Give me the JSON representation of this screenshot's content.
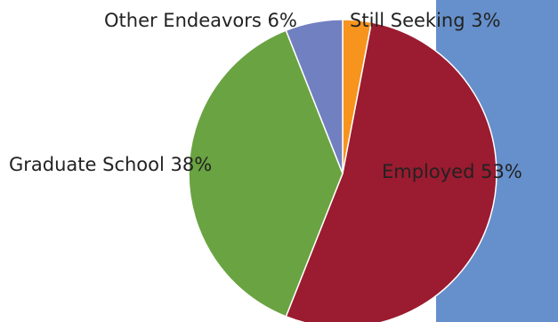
{
  "chart_data": {
    "type": "pie",
    "start_angle_deg": 0,
    "direction": "clockwise",
    "slices": [
      {
        "label": "Still Seeking",
        "percent_label": "3%",
        "value": 3,
        "color": "#f7941d"
      },
      {
        "label": "Employed",
        "percent_label": "53%",
        "value": 53,
        "color": "#9b1b30"
      },
      {
        "label": "Graduate School",
        "percent_label": "38%",
        "value": 38,
        "color": "#6aa341"
      },
      {
        "label": "Other Endeavors",
        "percent_label": "6%",
        "value": 6,
        "color": "#7180c1"
      }
    ]
  },
  "background_panel": {
    "color": "#6690cc"
  }
}
